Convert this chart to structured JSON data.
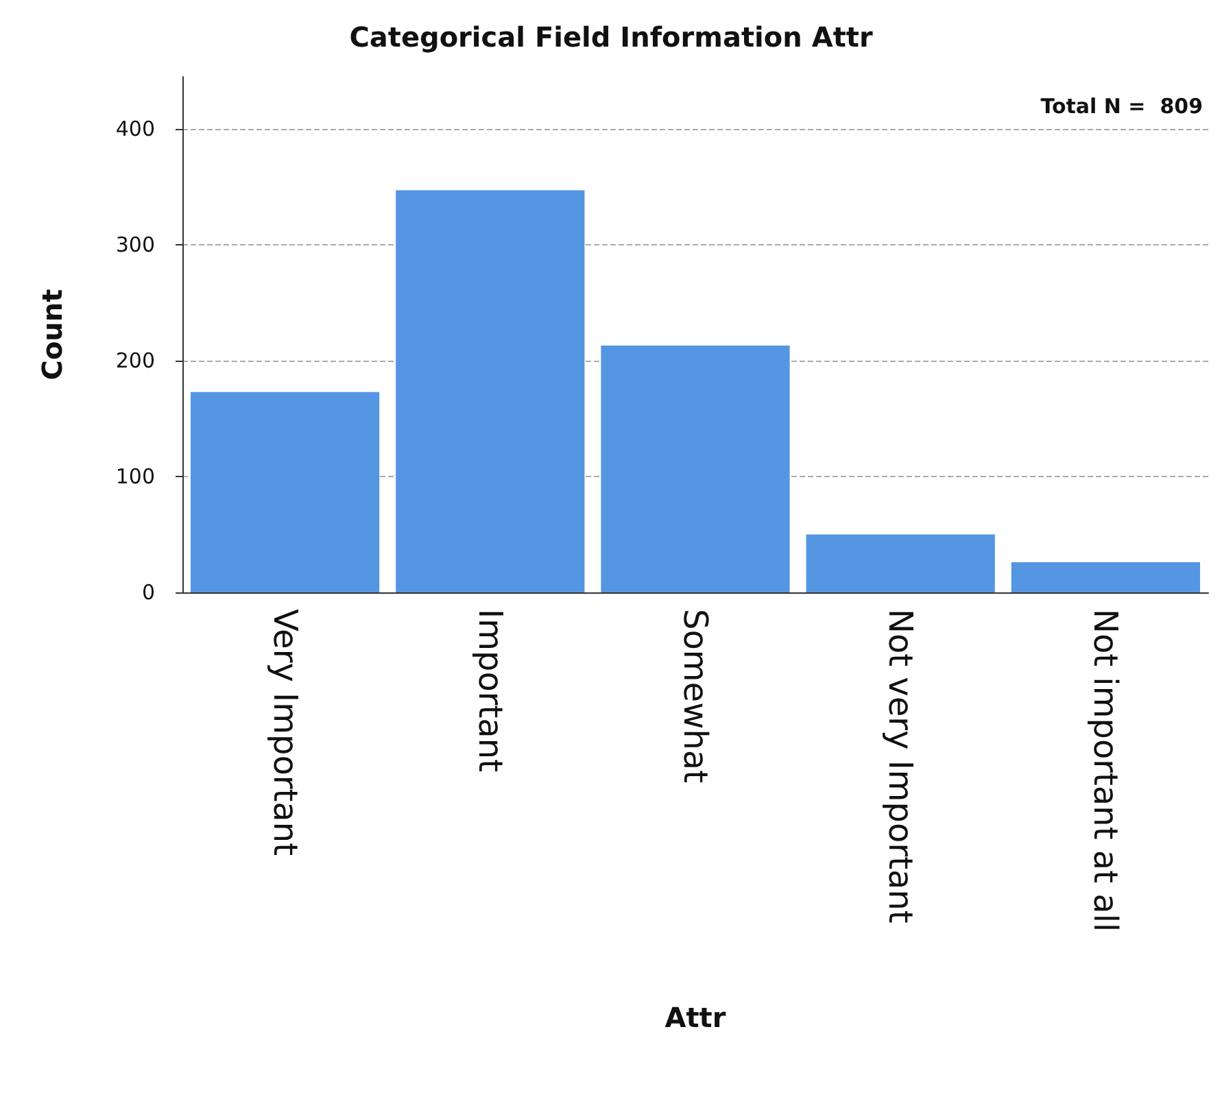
{
  "chart_data": {
    "type": "bar",
    "title": "Categorical Field Information Attr",
    "xlabel": "Attr",
    "ylabel": "Count",
    "categories": [
      "Very Important",
      "Important",
      "Somewhat",
      "Not very Important",
      "Not important at all"
    ],
    "values": [
      173,
      347,
      213,
      50,
      26
    ],
    "color": "#5596e3",
    "ylim": [
      0,
      445
    ],
    "yticks": [
      0,
      100,
      200,
      300,
      400
    ],
    "grid": "y",
    "annotations": [
      "Total N =  809"
    ]
  }
}
